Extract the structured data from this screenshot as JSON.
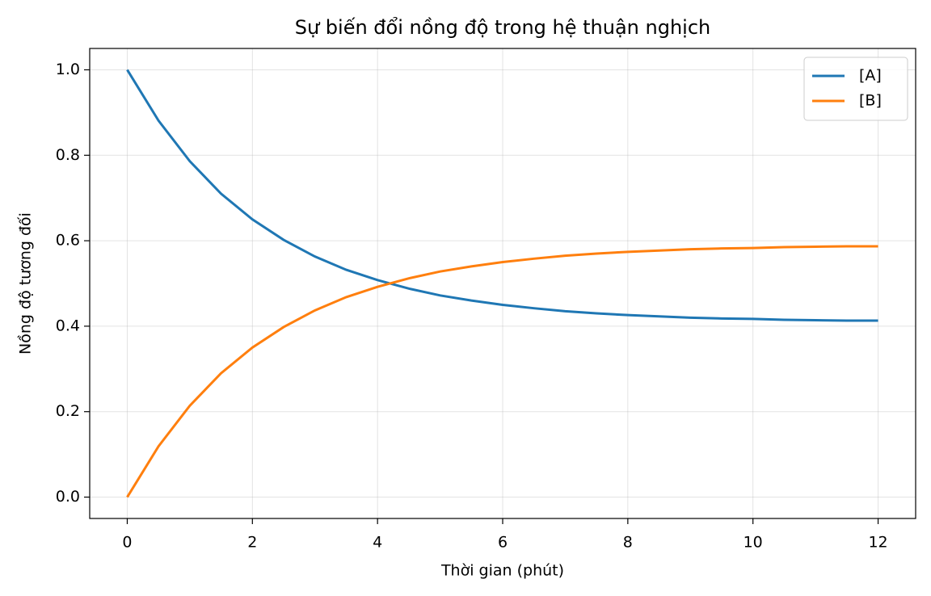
{
  "chart_data": {
    "type": "line",
    "title": "Sự biến đổi nồng độ trong hệ thuận nghịch",
    "xlabel": "Thời gian (phút)",
    "ylabel": "Nồng độ tương đối",
    "x": [
      0,
      0.5,
      1,
      1.5,
      2,
      2.5,
      3,
      3.5,
      4,
      4.5,
      5,
      5.5,
      6,
      6.5,
      7,
      7.5,
      8,
      8.5,
      9,
      9.5,
      10,
      10.5,
      11,
      11.5,
      12
    ],
    "series": [
      {
        "name": "[A]",
        "color": "#1f77b4",
        "values": [
          1.0,
          0.881,
          0.786,
          0.71,
          0.65,
          0.602,
          0.563,
          0.532,
          0.508,
          0.488,
          0.472,
          0.46,
          0.45,
          0.442,
          0.435,
          0.43,
          0.426,
          0.423,
          0.42,
          0.418,
          0.417,
          0.415,
          0.414,
          0.413,
          0.413
        ]
      },
      {
        "name": "[B]",
        "color": "#ff7f0e",
        "values": [
          0.0,
          0.119,
          0.214,
          0.29,
          0.35,
          0.398,
          0.437,
          0.468,
          0.492,
          0.512,
          0.528,
          0.54,
          0.55,
          0.558,
          0.565,
          0.57,
          0.574,
          0.577,
          0.58,
          0.582,
          0.583,
          0.585,
          0.586,
          0.587,
          0.587
        ]
      }
    ],
    "xlim": [
      -0.6,
      12.6
    ],
    "ylim": [
      -0.05,
      1.05
    ],
    "xticks": [
      0,
      2,
      4,
      6,
      8,
      10,
      12
    ],
    "yticks": [
      {
        "value": 0,
        "label": "0.0"
      },
      0.2,
      0.4,
      0.6,
      0.8,
      {
        "value": 1,
        "label": "1.0"
      }
    ],
    "grid": true,
    "legend": "upper right"
  }
}
